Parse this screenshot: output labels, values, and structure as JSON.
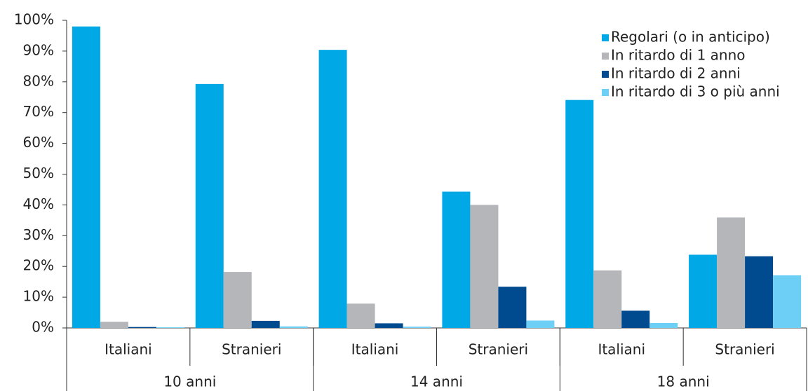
{
  "chart_data": {
    "type": "bar",
    "categories": [
      "Italiani",
      "Stranieri",
      "Italiani",
      "Stranieri",
      "Italiani",
      "Stranieri"
    ],
    "groups": [
      "10 anni",
      "14  anni",
      "18  anni"
    ],
    "series": [
      {
        "name": "Regolari (o in anticipo)",
        "color": "#00a9e6",
        "values": [
          98,
          79.3,
          90.4,
          44.3,
          74.1,
          23.8
        ]
      },
      {
        "name": "In ritardo di 1 anno",
        "color": "#b5b6ba",
        "values": [
          2,
          18.2,
          7.9,
          40,
          18.7,
          35.9
        ]
      },
      {
        "name": "In ritardo di 2 anni",
        "color": "#004a8f",
        "values": [
          0.3,
          2.3,
          1.5,
          13.4,
          5.6,
          23.3
        ]
      },
      {
        "name": "In ritardo di 3 o più anni",
        "color": "#6dcff6",
        "values": [
          0.2,
          0.5,
          0.4,
          2.4,
          1.6,
          17.1
        ]
      }
    ],
    "ylim": [
      0,
      100
    ],
    "yticks": [
      {
        "value": 0,
        "label": "0%"
      },
      {
        "value": 10,
        "label": "10%"
      },
      {
        "value": 20,
        "label": "20%"
      },
      {
        "value": 30,
        "label": "30%"
      },
      {
        "value": 40,
        "label": "40%"
      },
      {
        "value": 50,
        "label": "50%"
      },
      {
        "value": 60,
        "label": "60%"
      },
      {
        "value": 70,
        "label": "70%"
      },
      {
        "value": 80,
        "label": "80%"
      },
      {
        "value": 90,
        "label": "90%"
      },
      {
        "value": 100,
        "label": "100%"
      }
    ],
    "legend": "top-right"
  }
}
